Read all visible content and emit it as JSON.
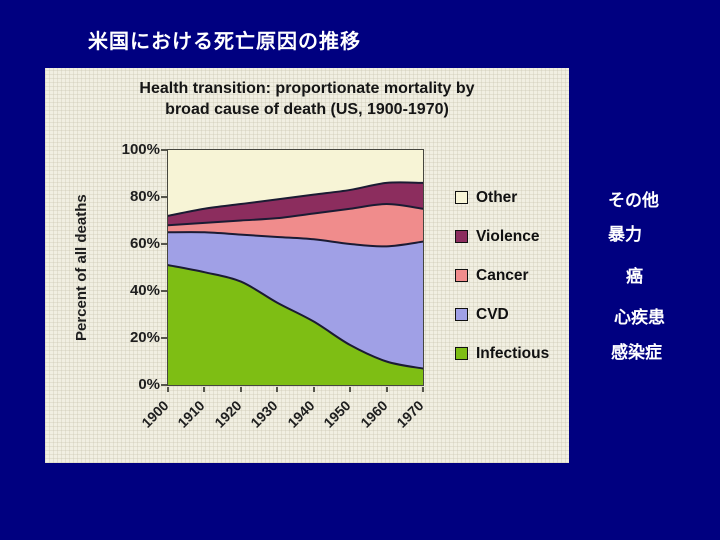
{
  "slide": {
    "title": "米国における死亡原因の推移"
  },
  "chart": {
    "title_line1": "Health transition: proportionate mortality by",
    "title_line2": "broad cause of death (US, 1900-1970)",
    "y_axis_title": "Percent of all deaths",
    "y_ticks": [
      "100%",
      "80%",
      "60%",
      "40%",
      "20%",
      "0%"
    ],
    "x_ticks": [
      "1900",
      "1910",
      "1920",
      "1930",
      "1940",
      "1950",
      "1960",
      "1970"
    ]
  },
  "chart_data": {
    "type": "area",
    "stacked": true,
    "title": "Health transition: proportionate mortality by broad cause of death (US, 1900-1970)",
    "xlabel": "",
    "ylabel": "Percent of all deaths",
    "x": [
      1900,
      1910,
      1920,
      1930,
      1940,
      1950,
      1960,
      1970
    ],
    "xlim": [
      1900,
      1970
    ],
    "ylim": [
      0,
      100
    ],
    "grid": false,
    "legend_position": "right",
    "boundary_color": "#1b1b33",
    "series": [
      {
        "name": "Infectious",
        "jp": "感染症",
        "color": "#7EBE14",
        "values": [
          51,
          48,
          44,
          35,
          27,
          17,
          10,
          7
        ]
      },
      {
        "name": "CVD",
        "jp": "心疾患",
        "color": "#A0A0E6",
        "values": [
          14,
          17,
          20,
          28,
          35,
          43,
          49,
          54
        ]
      },
      {
        "name": "Cancer",
        "jp": "癌",
        "color": "#F08C8C",
        "values": [
          3,
          4,
          6,
          8,
          11,
          15,
          18,
          14
        ]
      },
      {
        "name": "Violence",
        "jp": "暴力",
        "color": "#8C2D5E",
        "values": [
          4,
          6,
          7,
          8,
          8,
          8,
          9,
          11
        ]
      },
      {
        "name": "Other",
        "jp": "その他",
        "color": "#F7F4D6",
        "values": [
          28,
          25,
          23,
          21,
          19,
          17,
          14,
          14
        ]
      }
    ]
  },
  "legend": {
    "items": [
      {
        "label": "Other",
        "color": "#F7F4D6"
      },
      {
        "label": "Violence",
        "color": "#8C2D5E"
      },
      {
        "label": "Cancer",
        "color": "#F08C8C"
      },
      {
        "label": "CVD",
        "color": "#A0A0E6"
      },
      {
        "label": "Infectious",
        "color": "#7EBE14"
      }
    ]
  },
  "jp_labels": [
    {
      "text": "その他"
    },
    {
      "text": "暴力"
    },
    {
      "text": "癌"
    },
    {
      "text": "心疾患"
    },
    {
      "text": "感染症"
    }
  ],
  "colors": {
    "slide_background": "#000080",
    "panel_background": "#F1EFE2",
    "title_text": "#FFFFFF"
  }
}
